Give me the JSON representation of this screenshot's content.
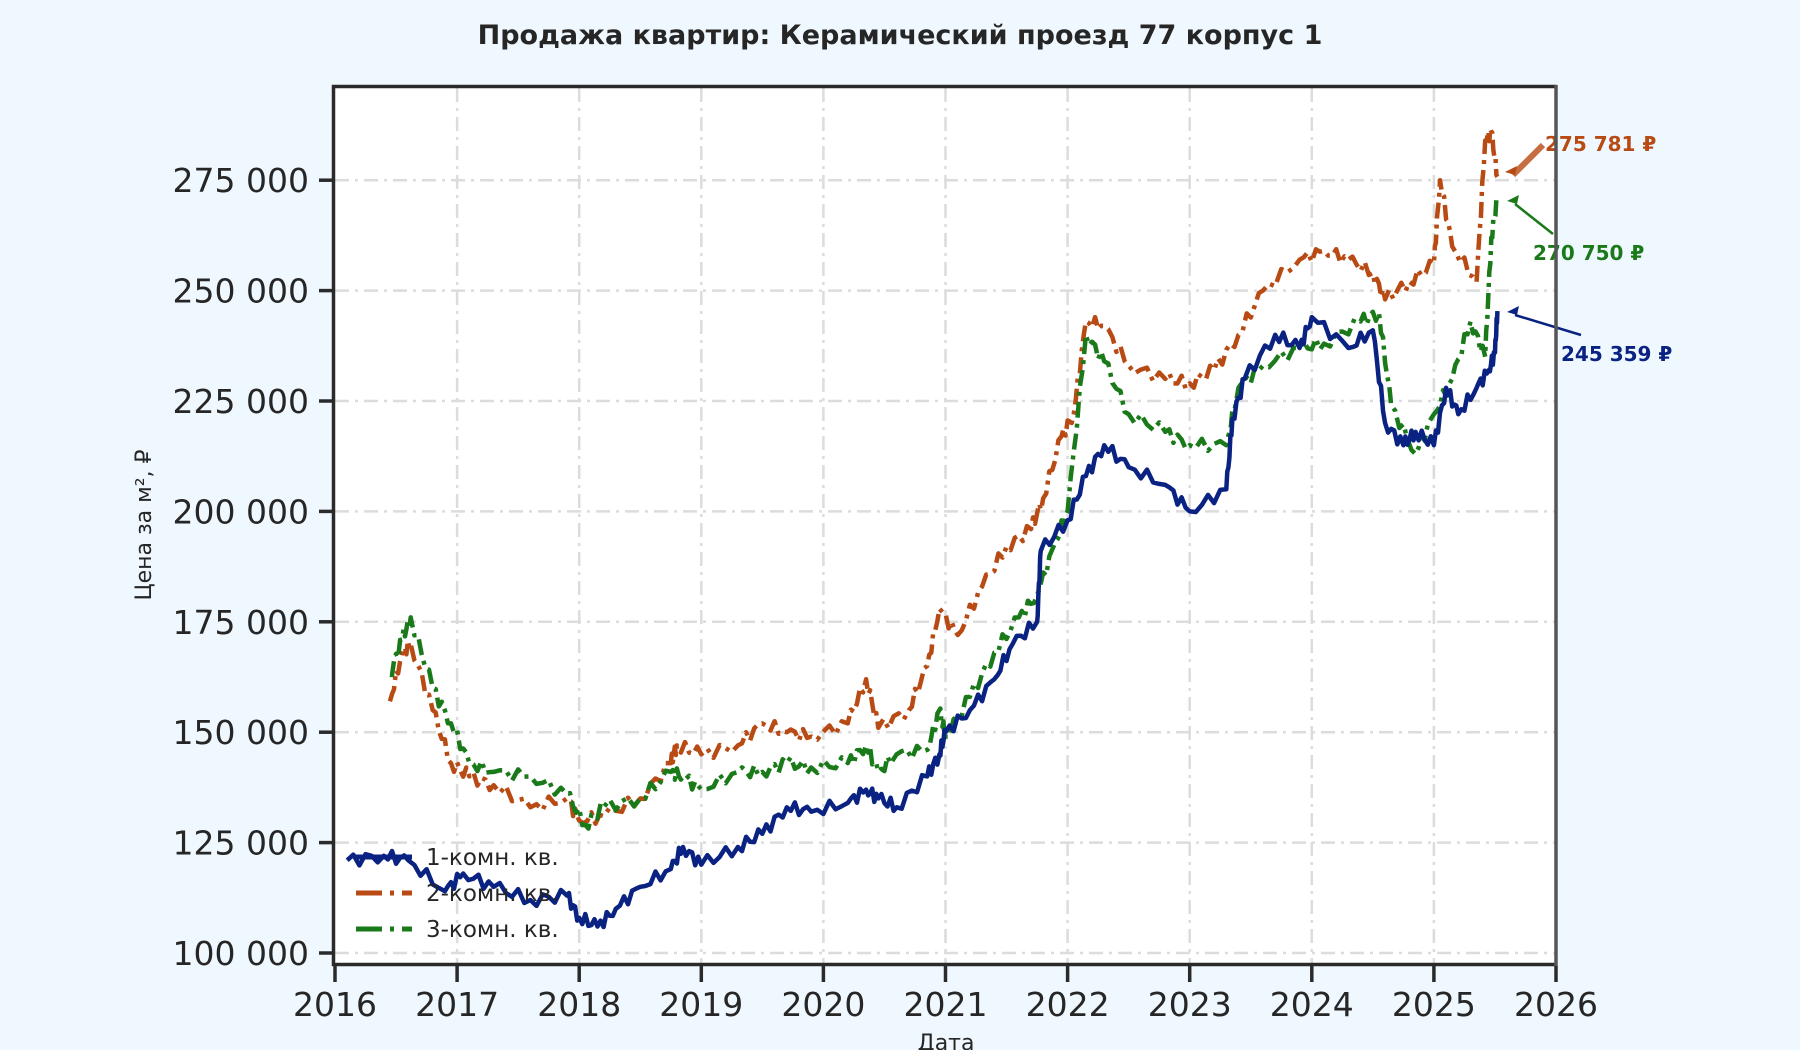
{
  "title": "Продажа квартир: Керамический проезд 77 корпус 1",
  "colors": {
    "background": "#f0f8ff",
    "plot_bg": "#ffffff",
    "one_room": "#0a2382",
    "two_room": "#b84a14",
    "three_room": "#1a7a1a"
  },
  "chart_data": {
    "type": "line",
    "title": "Продажа квартир: Керамический проезд 77 корпус 1",
    "xlabel": "Дата",
    "ylabel": "Цена за м², ₽",
    "xlim": [
      2016,
      2026
    ],
    "ylim": [
      97000,
      292000
    ],
    "grid": true,
    "legend_position": "lower left",
    "x_ticks": [
      "2016",
      "2017",
      "2018",
      "2019",
      "2020",
      "2021",
      "2022",
      "2023",
      "2024",
      "2025",
      "2026"
    ],
    "y_ticks": [
      "100 000",
      "125 000",
      "150 000",
      "175 000",
      "200 000",
      "225 000",
      "250 000",
      "275 000"
    ],
    "series": [
      {
        "name": "1-комн. кв.",
        "style": "solid",
        "x": [
          2016.1,
          2016.4,
          2016.6,
          2016.9,
          2017.05,
          2017.3,
          2017.6,
          2017.9,
          2018.0,
          2018.15,
          2018.3,
          2018.5,
          2018.75,
          2018.85,
          2019.0,
          2019.3,
          2019.5,
          2019.7,
          2019.9,
          2020.2,
          2020.35,
          2020.45,
          2020.6,
          2020.85,
          2020.95,
          2021.0,
          2021.2,
          2021.4,
          2021.55,
          2021.75,
          2021.78,
          2022.0,
          2022.15,
          2022.3,
          2022.5,
          2022.8,
          2023.0,
          2023.3,
          2023.35,
          2023.45,
          2023.7,
          2023.9,
          2024.0,
          2024.3,
          2024.5,
          2024.6,
          2024.75,
          2024.85,
          2025.0,
          2025.1,
          2025.2,
          2025.35,
          2025.45,
          2025.5,
          2025.52
        ],
        "values": [
          121000,
          122000,
          121000,
          114000,
          118000,
          115000,
          112000,
          113000,
          108000,
          106000,
          110000,
          115000,
          119000,
          124000,
          120000,
          124000,
          127000,
          133000,
          132000,
          134000,
          137000,
          135000,
          133000,
          140000,
          145000,
          150000,
          155000,
          162000,
          170000,
          175000,
          191000,
          198000,
          208000,
          215000,
          210000,
          206000,
          200000,
          205000,
          221000,
          230000,
          240000,
          237000,
          244000,
          237000,
          241000,
          220000,
          215000,
          218000,
          215000,
          228000,
          222000,
          228000,
          232000,
          236000,
          245359
        ]
      },
      {
        "name": "2-комн. кв.",
        "style": "dashdot",
        "x": [
          2016.45,
          2016.55,
          2016.62,
          2016.8,
          2016.95,
          2017.1,
          2017.3,
          2017.6,
          2017.9,
          2018.0,
          2018.2,
          2018.5,
          2018.75,
          2018.8,
          2019.0,
          2019.3,
          2019.5,
          2019.7,
          2019.9,
          2020.2,
          2020.35,
          2020.45,
          2020.7,
          2020.85,
          2020.95,
          2021.1,
          2021.3,
          2021.5,
          2021.7,
          2021.8,
          2021.95,
          2022.05,
          2022.15,
          2022.3,
          2022.5,
          2022.8,
          2023.0,
          2023.2,
          2023.4,
          2023.6,
          2023.9,
          2024.1,
          2024.3,
          2024.5,
          2024.6,
          2024.8,
          2025.0,
          2025.05,
          2025.15,
          2025.35,
          2025.42,
          2025.47,
          2025.52
        ],
        "values": [
          157000,
          168000,
          170000,
          155000,
          143000,
          140000,
          138000,
          133000,
          135000,
          130000,
          131000,
          135000,
          143000,
          147000,
          145000,
          147000,
          152000,
          150000,
          149000,
          152000,
          162000,
          151000,
          155000,
          165000,
          178000,
          172000,
          183000,
          192000,
          196000,
          203000,
          217000,
          222000,
          243000,
          242000,
          233000,
          230000,
          229000,
          232000,
          240000,
          250000,
          257000,
          259000,
          257000,
          254000,
          248000,
          252000,
          256000,
          275000,
          260000,
          252000,
          284000,
          286000,
          275781
        ]
      },
      {
        "name": "3-комн. кв.",
        "style": "dashdot",
        "x": [
          2016.45,
          2016.55,
          2016.62,
          2016.8,
          2016.95,
          2017.1,
          2017.3,
          2017.6,
          2017.9,
          2018.05,
          2018.2,
          2018.5,
          2018.75,
          2018.85,
          2019.0,
          2019.3,
          2019.5,
          2019.7,
          2019.9,
          2020.2,
          2020.35,
          2020.45,
          2020.6,
          2020.85,
          2020.95,
          2021.0,
          2021.2,
          2021.4,
          2021.6,
          2021.75,
          2021.9,
          2022.0,
          2022.15,
          2022.3,
          2022.5,
          2022.8,
          2023.0,
          2023.3,
          2023.4,
          2023.6,
          2023.9,
          2024.1,
          2024.4,
          2024.55,
          2024.65,
          2024.85,
          2025.0,
          2025.15,
          2025.3,
          2025.42,
          2025.47,
          2025.52
        ],
        "values": [
          163000,
          171000,
          176000,
          160000,
          152000,
          143000,
          141000,
          140000,
          136000,
          129000,
          133000,
          135000,
          141000,
          140000,
          137000,
          141000,
          141000,
          143000,
          142000,
          143000,
          147000,
          141000,
          145000,
          146000,
          155000,
          149000,
          158000,
          168000,
          176000,
          181000,
          193000,
          200000,
          240000,
          234000,
          222000,
          218000,
          215000,
          215000,
          228000,
          233000,
          237000,
          238000,
          243000,
          245000,
          224000,
          213000,
          222000,
          230000,
          243000,
          235000,
          262000,
          270750
        ]
      }
    ],
    "annotations": [
      {
        "text": "275 781 ₽",
        "series": "2-комн. кв.",
        "x": 2025.52,
        "y": 275781
      },
      {
        "text": "270 750 ₽",
        "series": "3-комн. кв.",
        "x": 2025.52,
        "y": 270750
      },
      {
        "text": "245 359 ₽",
        "series": "1-комн. кв.",
        "x": 2025.52,
        "y": 245359
      }
    ]
  },
  "legend": [
    {
      "label": "1-комн. кв."
    },
    {
      "label": "2-комн. кв."
    },
    {
      "label": "3-комн. кв."
    }
  ]
}
